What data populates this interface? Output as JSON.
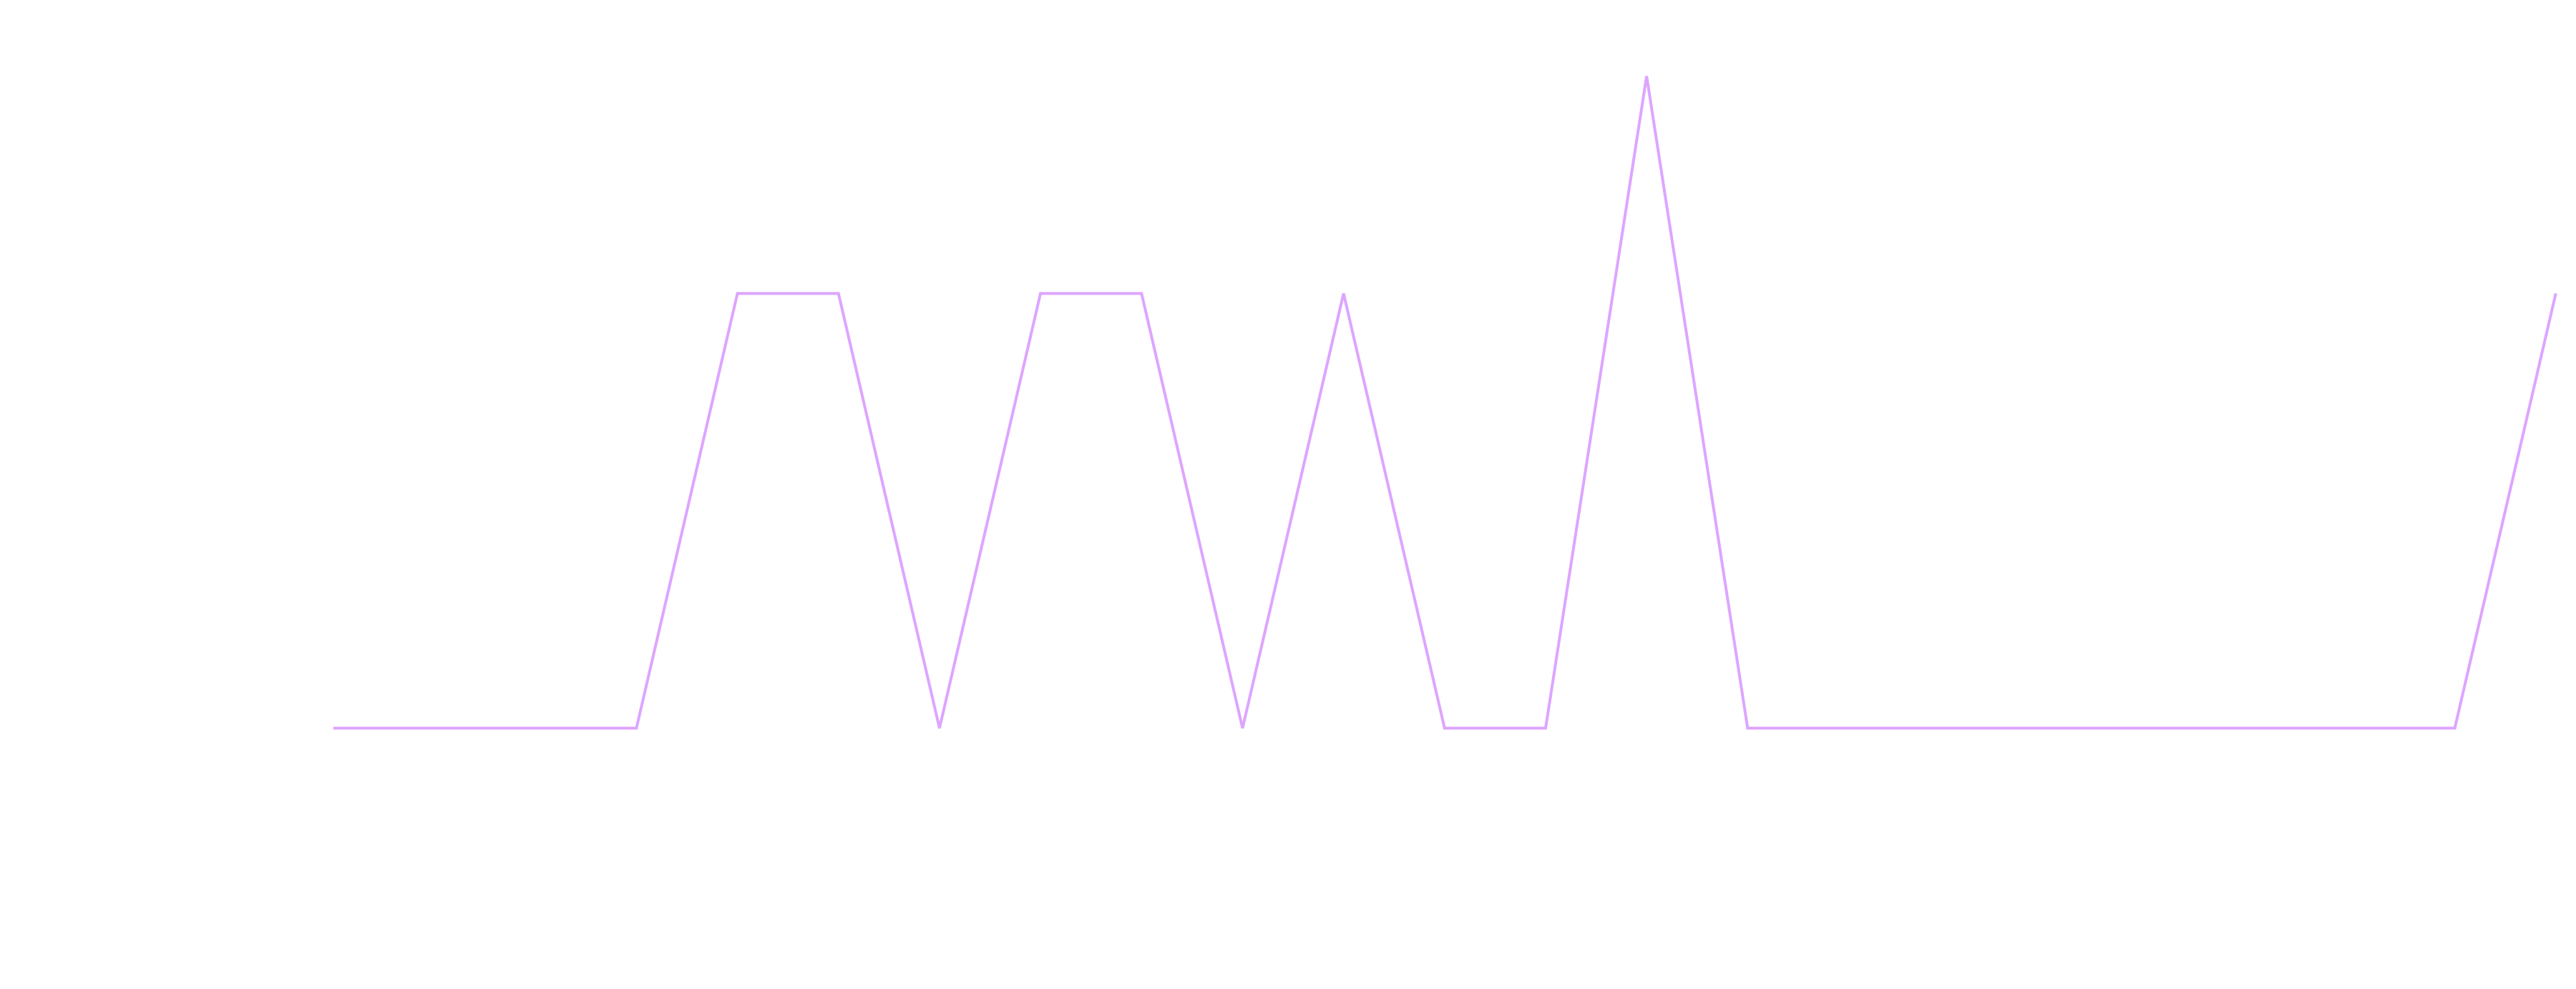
{
  "chart_data": {
    "type": "line",
    "x": [
      0,
      1,
      2,
      3,
      4,
      5,
      6,
      7,
      8,
      9,
      10,
      11,
      12,
      13,
      14,
      15,
      16,
      17,
      18,
      19,
      20,
      21,
      22
    ],
    "series": [
      {
        "values": [
          0,
          0,
          0,
          0,
          2,
          2,
          0,
          2,
          2,
          0,
          2,
          0,
          0,
          3,
          0,
          0,
          0,
          0,
          0,
          0,
          0,
          0,
          2
        ],
        "color": "#dda5ff"
      }
    ],
    "xlim": [
      -3.3,
      22.2
    ],
    "ylim": [
      -1.2,
      3.35
    ],
    "grid": false,
    "legend": "none"
  }
}
